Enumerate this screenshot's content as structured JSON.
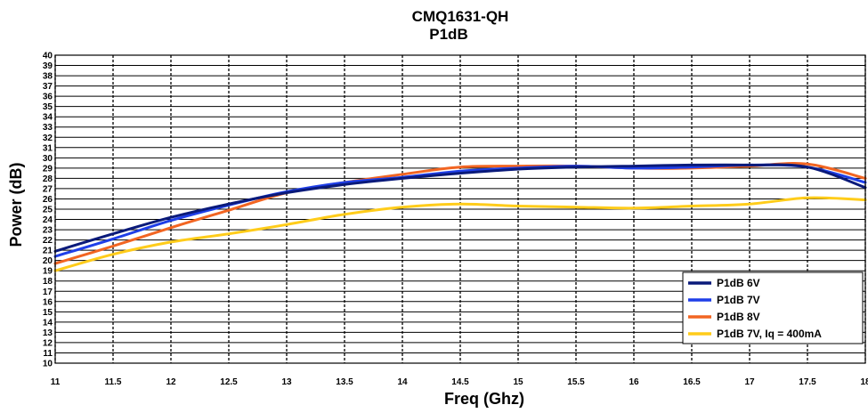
{
  "chart_data": {
    "type": "line",
    "title": "CMQ1631-QH",
    "subtitle": "P1dB",
    "xlabel": "Freq (Ghz)",
    "ylabel": "Power (dB)",
    "xlim": [
      11,
      18
    ],
    "ylim": [
      10,
      40
    ],
    "x_ticks": [
      "11",
      "11.5",
      "12",
      "12.5",
      "13",
      "13.5",
      "14",
      "14.5",
      "15",
      "15.5",
      "16",
      "16.5",
      "17",
      "17.5",
      "18"
    ],
    "y_ticks": [
      "10",
      "11",
      "12",
      "13",
      "14",
      "15",
      "16",
      "17",
      "18",
      "19",
      "20",
      "21",
      "22",
      "23",
      "24",
      "25",
      "26",
      "27",
      "28",
      "29",
      "30",
      "31",
      "32",
      "33",
      "34",
      "35",
      "36",
      "37",
      "38",
      "39",
      "40"
    ],
    "grid": true,
    "legend_position": "bottom-right",
    "series": [
      {
        "name": "P1dB 6V",
        "color": "#0a1a7a",
        "points": [
          [
            11,
            20.9
          ],
          [
            11.5,
            22.6
          ],
          [
            12,
            24.2
          ],
          [
            12.5,
            25.5
          ],
          [
            13,
            26.6
          ],
          [
            13.5,
            27.4
          ],
          [
            14,
            28.0
          ],
          [
            14.5,
            28.5
          ],
          [
            15,
            28.9
          ],
          [
            15.5,
            29.1
          ],
          [
            16,
            29.2
          ],
          [
            16.5,
            29.3
          ],
          [
            17,
            29.3
          ],
          [
            17.5,
            29.1
          ],
          [
            18,
            27.1
          ]
        ]
      },
      {
        "name": "P1dB 7V",
        "color": "#1f3fe8",
        "points": [
          [
            11,
            20.4
          ],
          [
            11.5,
            22.1
          ],
          [
            12,
            23.9
          ],
          [
            12.5,
            25.4
          ],
          [
            13,
            26.7
          ],
          [
            13.5,
            27.6
          ],
          [
            14,
            28.1
          ],
          [
            14.5,
            28.7
          ],
          [
            15,
            29.0
          ],
          [
            15.5,
            29.2
          ],
          [
            16,
            29.0
          ],
          [
            16.5,
            29.1
          ],
          [
            17,
            29.3
          ],
          [
            17.5,
            29.1
          ],
          [
            18,
            27.6
          ]
        ]
      },
      {
        "name": "P1dB 8V",
        "color": "#f26522",
        "points": [
          [
            11,
            19.7
          ],
          [
            11.5,
            21.4
          ],
          [
            12,
            23.2
          ],
          [
            12.5,
            24.9
          ],
          [
            13,
            26.6
          ],
          [
            13.5,
            27.6
          ],
          [
            14,
            28.4
          ],
          [
            14.5,
            29.1
          ],
          [
            15,
            29.2
          ],
          [
            15.5,
            29.2
          ],
          [
            16,
            29.0
          ],
          [
            16.5,
            29.0
          ],
          [
            17,
            29.2
          ],
          [
            17.5,
            29.4
          ],
          [
            18,
            28.0
          ]
        ]
      },
      {
        "name": "P1dB 7V, Iq = 400mA",
        "color": "#ffcc1a",
        "points": [
          [
            11,
            19.0
          ],
          [
            11.5,
            20.6
          ],
          [
            12,
            21.8
          ],
          [
            12.5,
            22.6
          ],
          [
            13,
            23.5
          ],
          [
            13.5,
            24.5
          ],
          [
            14,
            25.2
          ],
          [
            14.5,
            25.5
          ],
          [
            15,
            25.3
          ],
          [
            15.5,
            25.2
          ],
          [
            16,
            25.1
          ],
          [
            16.5,
            25.3
          ],
          [
            17,
            25.5
          ],
          [
            17.5,
            26.1
          ],
          [
            18,
            25.9
          ]
        ]
      }
    ]
  }
}
